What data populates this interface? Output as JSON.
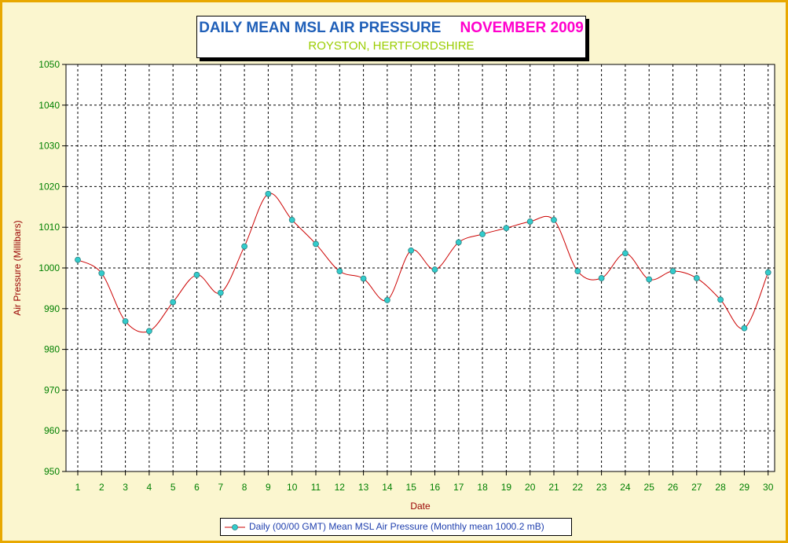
{
  "title": {
    "main": "DAILY MEAN MSL AIR PRESSURE",
    "date": "NOVEMBER 2009",
    "subtitle": "ROYSTON, HERTFORDSHIRE"
  },
  "colors": {
    "background": "#fbf6cf",
    "border": "#e8a800",
    "line": "#cc0000",
    "marker": "#33cccc",
    "tick_label": "#008000",
    "axis_title": "#990000"
  },
  "chart_data": {
    "type": "line",
    "xlabel": "Date",
    "ylabel": "Air Pressure (Millibars)",
    "ylim": [
      950,
      1050
    ],
    "yticks": [
      950,
      960,
      970,
      980,
      990,
      1000,
      1010,
      1020,
      1030,
      1040,
      1050
    ],
    "x": [
      1,
      2,
      3,
      4,
      5,
      6,
      7,
      8,
      9,
      10,
      11,
      12,
      13,
      14,
      15,
      16,
      17,
      18,
      19,
      20,
      21,
      22,
      23,
      24,
      25,
      26,
      27,
      28,
      29,
      30
    ],
    "grid": true,
    "legend_position": "bottom",
    "series": [
      {
        "name": "Daily (00/00 GMT) Mean MSL Air Pressure (Monthly mean 1000.2 mB)",
        "values": [
          1002.0,
          998.7,
          986.9,
          984.5,
          991.6,
          998.3,
          993.9,
          1005.3,
          1018.2,
          1011.8,
          1005.9,
          999.2,
          997.4,
          992.1,
          1004.3,
          999.6,
          1006.3,
          1008.3,
          1009.8,
          1011.4,
          1011.8,
          999.2,
          997.5,
          1003.6,
          997.2,
          999.2,
          997.5,
          992.2,
          985.2,
          998.9
        ]
      }
    ]
  }
}
